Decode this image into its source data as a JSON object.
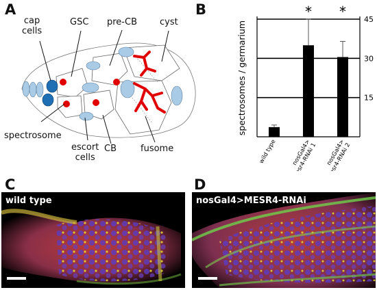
{
  "panels": {
    "a": {
      "letter": "A"
    },
    "b": {
      "letter": "B"
    },
    "c": {
      "letter": "C",
      "caption": "wild type"
    },
    "d": {
      "letter": "D",
      "caption": "nosGal4>MESR4-RNAi"
    }
  },
  "diagram": {
    "labels": {
      "cap_cells": "cap\ncells",
      "gsc": "GSC",
      "pre_cb": "pre-CB",
      "cyst": "cyst",
      "spectrosome": "spectrosome",
      "escort_cells": "escort\ncells",
      "cb": "CB",
      "fusome": "fusome"
    },
    "colors": {
      "cap_cell": "#1f6fb4",
      "somatic_cell": "#a9cbe6",
      "spectrosome": "#e00000",
      "outline": "#555555"
    }
  },
  "chart_data": {
    "type": "bar",
    "categories": [
      "wild type",
      "nosGal4>\nMesr4-RNAi 1",
      "nosGal4>\nMesr4-RNAi 2"
    ],
    "values": [
      3.7,
      35,
      30.5
    ],
    "error_upper": [
      0.8,
      10,
      6
    ],
    "significance": [
      "",
      "*",
      "*"
    ],
    "ylabel": "spectrosomes / germarium",
    "yticks": [
      15,
      30,
      45
    ],
    "ylim": [
      0,
      45
    ],
    "grid": true,
    "bar_color": "#000000"
  },
  "micrographs": {
    "colors": {
      "background": "#000000",
      "red": "#d13a2a",
      "blue": "#5a3cc8",
      "yellow": "#e8d83a",
      "green": "#4fb64a"
    }
  }
}
